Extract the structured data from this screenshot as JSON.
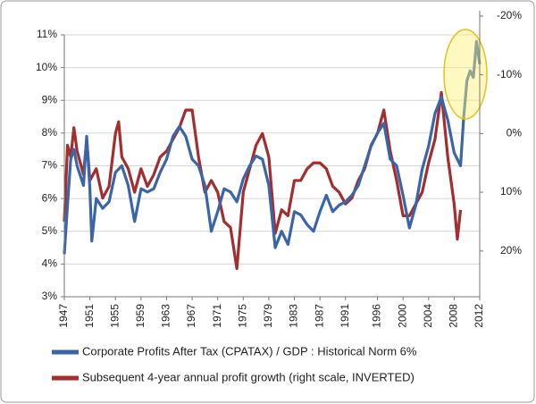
{
  "chart_data": {
    "type": "line",
    "xlim": [
      1947,
      2012
    ],
    "xticks": [
      1947,
      1951,
      1955,
      1959,
      1963,
      1967,
      1971,
      1975,
      1979,
      1983,
      1987,
      1991,
      1996,
      2000,
      2004,
      2008,
      2012
    ],
    "ylim": [
      3,
      11
    ],
    "yticks": [
      {
        "value": 3,
        "label": "3%"
      },
      {
        "value": 4,
        "label": "4%"
      },
      {
        "value": 5,
        "label": "5%"
      },
      {
        "value": 6,
        "label": "6%"
      },
      {
        "value": 7,
        "label": "7%"
      },
      {
        "value": 8,
        "label": "8%"
      },
      {
        "value": 9,
        "label": "9%"
      },
      {
        "value": 10,
        "label": "10%"
      },
      {
        "value": 11,
        "label": "11%"
      }
    ],
    "y2lim": [
      27.8,
      -16.8
    ],
    "y2ticks": [
      {
        "value": -20,
        "label": "-20%"
      },
      {
        "value": -10,
        "label": "-10%"
      },
      {
        "value": 0,
        "label": "0%"
      },
      {
        "value": 10,
        "label": "10%"
      },
      {
        "value": 20,
        "label": "20%"
      }
    ],
    "grid": true,
    "legend": "bottom",
    "series": [
      {
        "name": "Corporate Profits After Tax (CPATAX) / GDP : Historical Norm 6%",
        "color": "#3a66a8",
        "x": [
          1947,
          1947.5,
          1948,
          1948.5,
          1949,
          1950,
          1950.5,
          1951,
          1951.3,
          1952,
          1953,
          1954,
          1955,
          1956,
          1957,
          1958,
          1959,
          1960,
          1961,
          1962,
          1963,
          1964,
          1965,
          1966,
          1967,
          1968,
          1969,
          1970,
          1971,
          1972,
          1973,
          1974,
          1975,
          1976,
          1977,
          1978,
          1979,
          1980,
          1981,
          1982,
          1983,
          1984,
          1985,
          1986,
          1987,
          1988,
          1989,
          1990,
          1991,
          1992,
          1993,
          1994,
          1995,
          1996,
          1997,
          1998,
          1999,
          2000,
          2001,
          2002,
          2003,
          2004,
          2005,
          2006,
          2007,
          2008,
          2009,
          2009.5,
          2010,
          2010.5,
          2011,
          2011.5,
          2012
        ],
        "values": [
          4.3,
          5.8,
          7.2,
          7.5,
          7.0,
          6.4,
          7.9,
          6.3,
          4.7,
          6.0,
          5.7,
          5.9,
          6.8,
          7.0,
          6.4,
          5.3,
          6.3,
          6.2,
          6.3,
          6.8,
          7.2,
          7.9,
          8.2,
          7.9,
          7.2,
          7.0,
          6.4,
          5.0,
          5.6,
          6.3,
          6.2,
          5.9,
          6.6,
          7.0,
          7.3,
          7.2,
          6.4,
          4.5,
          5.0,
          4.6,
          5.6,
          5.5,
          5.2,
          5.0,
          5.6,
          6.1,
          5.6,
          5.8,
          5.9,
          6.1,
          6.4,
          7.0,
          7.6,
          8.0,
          8.3,
          7.2,
          7.0,
          6.1,
          5.1,
          5.8,
          6.9,
          7.6,
          8.6,
          9.1,
          8.4,
          7.4,
          7.0,
          8.5,
          9.6,
          9.9,
          9.7,
          10.8,
          10.1
        ]
      },
      {
        "name": "Subsequent 4-year annual profit growth (right scale, INVERTED)",
        "color": "#a32d2f",
        "axis": "y2",
        "x": [
          1947,
          1947.5,
          1948,
          1948.5,
          1949,
          1950,
          1950.5,
          1951,
          1952,
          1953,
          1954,
          1955,
          1955.5,
          1956,
          1957,
          1958,
          1959,
          1960,
          1961,
          1962,
          1963,
          1964,
          1965,
          1966,
          1967,
          1968,
          1969,
          1970,
          1971,
          1972,
          1973,
          1974,
          1975,
          1976,
          1977,
          1978,
          1979,
          1980,
          1981,
          1982,
          1983,
          1984,
          1985,
          1986,
          1987,
          1988,
          1989,
          1990,
          1991,
          1992,
          1993,
          1994,
          1995,
          1996,
          1997,
          1998,
          1999,
          2000,
          2001,
          2002,
          2003,
          2004,
          2005,
          2006,
          2007,
          2008,
          2008.5,
          2009
        ],
        "values": [
          15,
          2,
          4,
          -1,
          3,
          7,
          1,
          8,
          6,
          11,
          9,
          0,
          -2,
          4,
          6,
          10,
          6,
          9,
          7,
          4,
          3,
          1,
          -1,
          -4,
          -4,
          4,
          10,
          8,
          10,
          15,
          16,
          23,
          10,
          6,
          2,
          0,
          4,
          17,
          13,
          14,
          8,
          8,
          6,
          5,
          5,
          6,
          9,
          10,
          12,
          11,
          8,
          6,
          2,
          0,
          -4,
          3,
          8,
          14,
          14,
          12,
          10,
          5,
          1,
          -7,
          4,
          12,
          18,
          13
        ]
      }
    ]
  }
}
